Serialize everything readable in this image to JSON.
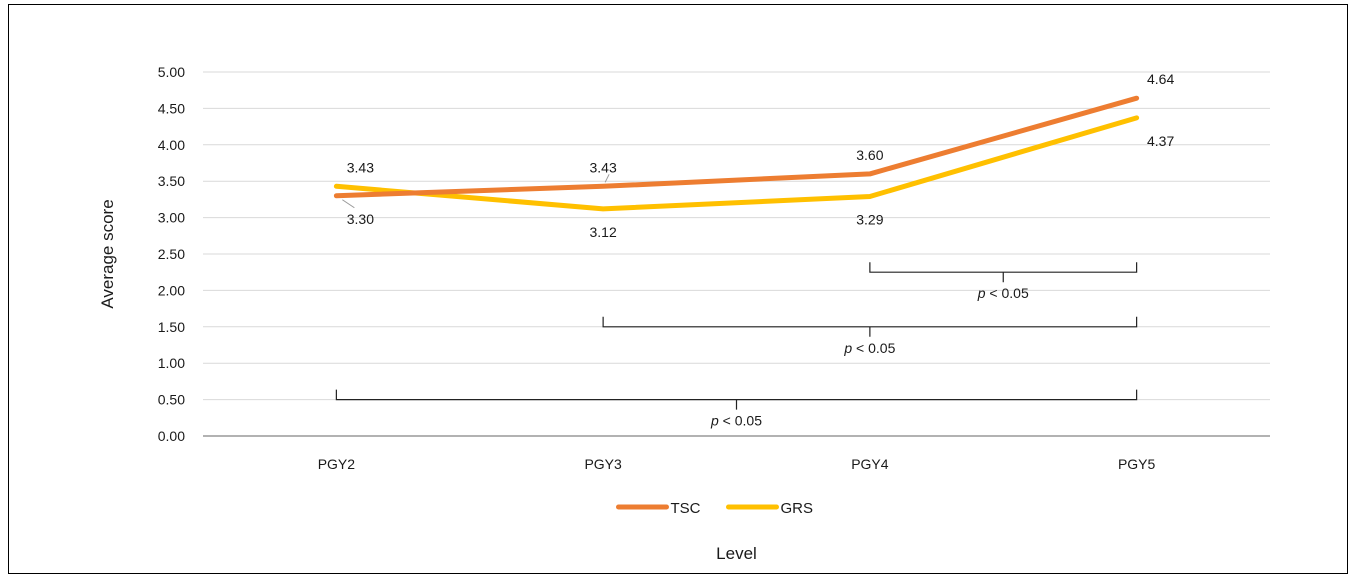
{
  "chart_data": {
    "type": "line",
    "categories": [
      "PGY2",
      "PGY3",
      "PGY4",
      "PGY5"
    ],
    "series": [
      {
        "name": "TSC",
        "color": "#ED7D31",
        "values": [
          3.3,
          3.43,
          3.6,
          4.64
        ]
      },
      {
        "name": "GRS",
        "color": "#FFC000",
        "values": [
          3.43,
          3.12,
          3.29,
          4.37
        ]
      }
    ],
    "data_labels": {
      "TSC": [
        "3.30",
        "3.43",
        "3.60",
        "4.64"
      ],
      "GRS": [
        "3.43",
        "3.12",
        "3.29",
        "4.37"
      ]
    },
    "xlabel": "Level",
    "ylabel": "Average score",
    "ylim": [
      0,
      5
    ],
    "yticks": [
      "0.00",
      "0.50",
      "1.00",
      "1.50",
      "2.00",
      "2.50",
      "3.00",
      "3.50",
      "4.00",
      "4.50",
      "5.00"
    ],
    "grid": true,
    "legend_position": "bottom",
    "annotations": [
      {
        "from": "PGY4",
        "to": "PGY5",
        "level": 2.25,
        "p_symbol": "p",
        "text": " < 0.05"
      },
      {
        "from": "PGY3",
        "to": "PGY5",
        "level": 1.5,
        "p_symbol": "p",
        "text": " < 0.05"
      },
      {
        "from": "PGY2",
        "to": "PGY5",
        "level": 0.5,
        "p_symbol": "p",
        "text": " < 0.05"
      }
    ]
  }
}
